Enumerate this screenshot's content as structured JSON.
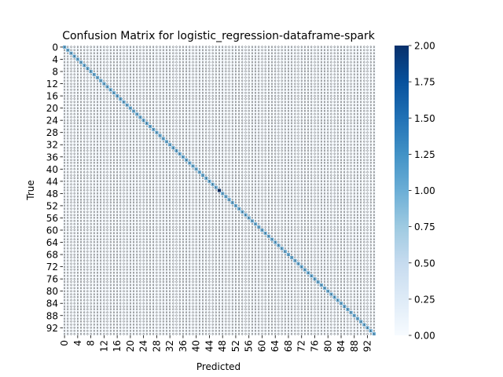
{
  "chart_data": {
    "type": "heatmap",
    "title": "Confusion Matrix for logistic_regression-dataframe-spark",
    "xlabel": "Predicted",
    "ylabel": "True",
    "n_classes": 95,
    "tick_labels": [
      "0",
      "4",
      "8",
      "12",
      "16",
      "20",
      "24",
      "28",
      "32",
      "36",
      "40",
      "44",
      "48",
      "52",
      "56",
      "60",
      "64",
      "68",
      "72",
      "76",
      "80",
      "84",
      "88",
      "92"
    ],
    "tick_values": [
      0,
      4,
      8,
      12,
      16,
      20,
      24,
      28,
      32,
      36,
      40,
      44,
      48,
      52,
      56,
      60,
      64,
      68,
      72,
      76,
      80,
      84,
      88,
      92
    ],
    "colorbar": {
      "min": 0,
      "max": 2,
      "tick_labels": [
        "0.00",
        "0.25",
        "0.50",
        "0.75",
        "1.00",
        "1.25",
        "1.50",
        "1.75",
        "2.00"
      ],
      "tick_values": [
        0,
        0.25,
        0.5,
        0.75,
        1.0,
        1.25,
        1.5,
        1.75,
        2.0
      ],
      "colormap": "Blues"
    },
    "diagonal_value": 1,
    "off_diagonal_value": 0,
    "annotated": true,
    "note_cells": [
      {
        "row": 47,
        "col": 47,
        "value": 2
      }
    ],
    "colors": {
      "low": "#f7fbff",
      "high": "#08306b",
      "annotation": "#000000"
    }
  }
}
